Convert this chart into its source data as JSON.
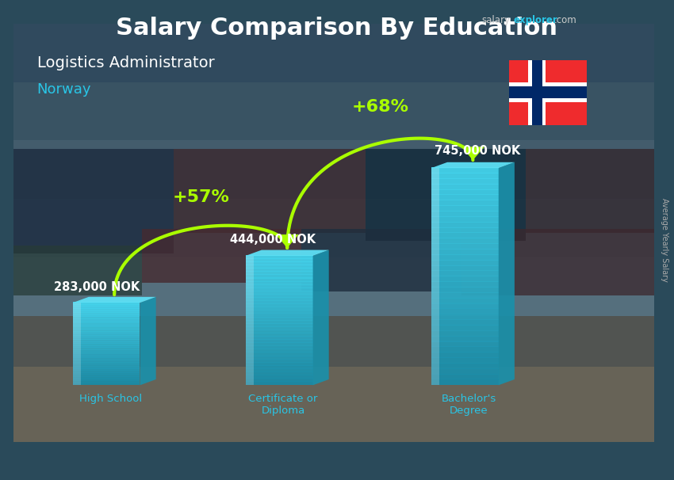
{
  "title_part1": "Salary Comparison By Education",
  "subtitle": "Logistics Administrator",
  "country": "Norway",
  "categories": [
    "High School",
    "Certificate or\nDiploma",
    "Bachelor's\nDegree"
  ],
  "values": [
    283000,
    444000,
    745000
  ],
  "value_labels": [
    "283,000 NOK",
    "444,000 NOK",
    "745,000 NOK"
  ],
  "pct_labels": [
    "+57%",
    "+68%"
  ],
  "bar_face_color": "#29c5e6",
  "bar_side_color": "#1a90aa",
  "bar_top_color": "#5de0f5",
  "bg_top_color": "#3a5a7a",
  "bg_mid_color": "#5a7a8a",
  "bg_bottom_color": "#8a7a60",
  "title_color": "#ffffff",
  "subtitle_color": "#ffffff",
  "country_color": "#29c5e6",
  "cat_label_color": "#29c5e6",
  "value_label_color": "#ffffff",
  "pct_color": "#aaff00",
  "right_label": "Average Yearly Salary"
}
